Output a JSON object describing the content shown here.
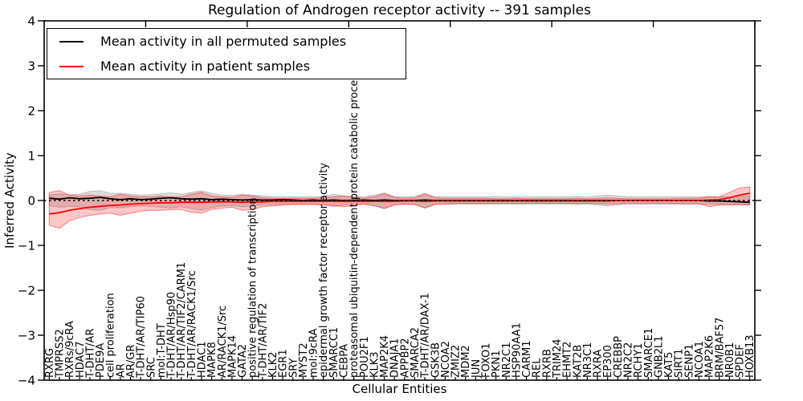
{
  "chart_data": {
    "type": "line",
    "title": "Regulation of Androgen receptor activity -- 391 samples",
    "xlabel": "Cellular Entities",
    "ylabel": "Inferred Activity",
    "ylim": [
      -4,
      4
    ],
    "ytick_values": [
      4,
      3,
      2,
      1,
      0,
      -1,
      -2,
      -3,
      -4
    ],
    "ytick_labels": [
      "4",
      "3",
      "2",
      "1",
      "0",
      "−1",
      "−2",
      "−3",
      "−4"
    ],
    "x_major_tick_interval": 10,
    "grid": false,
    "legend_position": "upper-left-inside",
    "legend": [
      {
        "label": "Mean activity in all permuted samples",
        "color": "#000000"
      },
      {
        "label": "Mean activity in patient samples",
        "color": "#ff0000"
      }
    ],
    "colors": {
      "permuted_line": "#000000",
      "patient_line": "#ff0000",
      "zero_line": "#000000",
      "permuted_band_fill": "rgba(128,128,128,0.28)",
      "permuted_band_edge": "rgba(128,128,128,0.45)",
      "patient_band_fill": "rgba(255,0,0,0.22)",
      "patient_band_edge": "rgba(255,0,0,0.45)"
    },
    "categories": [
      "RXRG",
      "TMPRSS2",
      "RXRs/9cRA",
      "HDAC7",
      "T-DHT/AR",
      "PDE9A",
      "cell proliferation",
      "AR",
      "AR/GR",
      "T-DHT/AR/TIP60",
      "SRC",
      "mol:T-DHT",
      "T-DHT/AR/Hsp90",
      "T-DHT/AR/TIF2/CARM1",
      "T-DHT/AR/RACK1/Src",
      "HDAC1",
      "MAPK8",
      "AR/RACK1/Src",
      "MAPK14",
      "GATA2",
      "positive regulation of transcription",
      "T-DHT/AR/TIF2",
      "KLK2",
      "EGR1",
      "SRY",
      "MYST2",
      "mol:9cRA",
      "epidermal growth factor receptor activity",
      "SMARCC1",
      "CEBPA",
      "proteasomal ubiquitin-dependent protein catabolic process",
      "POU2F1",
      "KLK3",
      "MAP2K4",
      "DNAJA1",
      "APPBP2",
      "SMARCA2",
      "T-DHT/AR/DAX-1",
      "GSK3B",
      "NCOA2",
      "ZMIZ2",
      "MDM2",
      "JUN",
      "FOXO1",
      "PKN1",
      "NR2C1",
      "HSP90AA1",
      "CARM1",
      "REL",
      "RXRB",
      "TRIM24",
      "EHMT2",
      "KAT2B",
      "NR3C1",
      "RXRA",
      "EP300",
      "CREBBP",
      "NR2C2",
      "RCHY1",
      "SMARCE1",
      "GNB2L1",
      "KAT5",
      "SIRT1",
      "SENP1",
      "NCOA1",
      "MAP2K6",
      "BRM/BAF57",
      "NR0B1",
      "SPDEF",
      "HOXB13"
    ],
    "series": [
      {
        "name": "Mean activity in all permuted samples",
        "values": [
          0.05,
          0.03,
          0.06,
          0.04,
          0.05,
          0.07,
          0.04,
          0.02,
          0.04,
          0.02,
          0.03,
          0.05,
          0.06,
          0.04,
          0.03,
          0.04,
          0.02,
          0.03,
          0.02,
          0.01,
          0.02,
          0.01,
          0.01,
          0.02,
          0.01,
          0.0,
          0.01,
          0.0,
          0.01,
          0.0,
          0.0,
          0.01,
          0.0,
          0.01,
          0.0,
          0.0,
          0.0,
          0.01,
          0.0,
          0.0,
          0.0,
          0.0,
          0.0,
          0.0,
          0.0,
          0.0,
          0.0,
          0.0,
          0.0,
          0.0,
          0.0,
          0.0,
          0.0,
          0.0,
          0.0,
          0.0,
          0.0,
          0.0,
          0.0,
          0.0,
          0.0,
          0.0,
          0.0,
          0.0,
          0.0,
          -0.01,
          -0.01,
          -0.02,
          -0.03,
          -0.04
        ]
      },
      {
        "name": "Mean activity in patient samples",
        "values": [
          -0.3,
          -0.27,
          -0.22,
          -0.18,
          -0.15,
          -0.13,
          -0.11,
          -0.1,
          -0.08,
          -0.07,
          -0.06,
          -0.05,
          -0.05,
          -0.04,
          -0.04,
          -0.04,
          -0.03,
          -0.03,
          -0.03,
          -0.04,
          -0.03,
          -0.03,
          -0.02,
          -0.02,
          -0.02,
          -0.02,
          -0.02,
          -0.02,
          -0.02,
          -0.02,
          -0.02,
          -0.02,
          -0.02,
          -0.02,
          -0.02,
          -0.01,
          -0.01,
          -0.02,
          -0.01,
          -0.01,
          -0.01,
          -0.01,
          -0.01,
          -0.01,
          -0.01,
          -0.01,
          -0.01,
          -0.01,
          -0.01,
          -0.01,
          -0.01,
          -0.01,
          -0.01,
          -0.01,
          -0.01,
          -0.01,
          0.0,
          0.0,
          0.0,
          0.0,
          0.0,
          0.0,
          0.0,
          0.0,
          0.0,
          0.01,
          0.02,
          0.06,
          0.12,
          0.16
        ]
      }
    ],
    "bands": [
      {
        "name": "permuted-confidence-band",
        "upper": [
          0.12,
          0.15,
          0.13,
          0.14,
          0.2,
          0.22,
          0.16,
          0.16,
          0.14,
          0.12,
          0.13,
          0.15,
          0.17,
          0.14,
          0.18,
          0.22,
          0.16,
          0.12,
          0.11,
          0.14,
          0.12,
          0.1,
          0.09,
          0.09,
          0.08,
          0.08,
          0.08,
          0.09,
          0.14,
          0.1,
          0.09,
          0.08,
          0.12,
          0.17,
          0.09,
          0.08,
          0.09,
          0.16,
          0.08,
          0.08,
          0.08,
          0.08,
          0.08,
          0.08,
          0.09,
          0.08,
          0.08,
          0.08,
          0.08,
          0.08,
          0.08,
          0.08,
          0.09,
          0.08,
          0.1,
          0.12,
          0.1,
          0.08,
          0.08,
          0.08,
          0.08,
          0.08,
          0.08,
          0.08,
          0.08,
          0.09,
          0.08,
          0.08,
          0.09,
          0.1
        ],
        "lower": [
          -0.12,
          -0.15,
          -0.13,
          -0.14,
          -0.2,
          -0.22,
          -0.16,
          -0.16,
          -0.14,
          -0.12,
          -0.13,
          -0.15,
          -0.17,
          -0.14,
          -0.18,
          -0.22,
          -0.16,
          -0.12,
          -0.11,
          -0.14,
          -0.12,
          -0.1,
          -0.09,
          -0.09,
          -0.08,
          -0.08,
          -0.08,
          -0.09,
          -0.14,
          -0.1,
          -0.09,
          -0.08,
          -0.12,
          -0.17,
          -0.09,
          -0.08,
          -0.09,
          -0.16,
          -0.08,
          -0.08,
          -0.08,
          -0.08,
          -0.08,
          -0.08,
          -0.09,
          -0.08,
          -0.08,
          -0.08,
          -0.08,
          -0.08,
          -0.08,
          -0.08,
          -0.09,
          -0.08,
          -0.1,
          -0.12,
          -0.1,
          -0.08,
          -0.08,
          -0.08,
          -0.08,
          -0.08,
          -0.08,
          -0.08,
          -0.08,
          -0.09,
          -0.08,
          -0.08,
          -0.09,
          -0.1
        ]
      },
      {
        "name": "patient-confidence-band",
        "upper": [
          0.18,
          0.22,
          0.12,
          0.1,
          0.12,
          0.1,
          0.08,
          0.14,
          0.1,
          0.08,
          0.08,
          0.1,
          0.08,
          0.08,
          0.14,
          0.18,
          0.1,
          0.08,
          0.07,
          0.12,
          0.1,
          0.06,
          0.05,
          0.05,
          0.05,
          0.05,
          0.05,
          0.06,
          0.08,
          0.1,
          0.07,
          0.05,
          0.08,
          0.15,
          0.07,
          0.05,
          0.06,
          0.14,
          0.06,
          0.05,
          0.05,
          0.05,
          0.05,
          0.05,
          0.04,
          0.04,
          0.05,
          0.04,
          0.04,
          0.04,
          0.04,
          0.04,
          0.05,
          0.04,
          0.05,
          0.06,
          0.05,
          0.04,
          0.04,
          0.04,
          0.04,
          0.04,
          0.05,
          0.05,
          0.05,
          0.08,
          0.08,
          0.18,
          0.28,
          0.3
        ],
        "lower": [
          -0.55,
          -0.62,
          -0.45,
          -0.38,
          -0.33,
          -0.3,
          -0.28,
          -0.33,
          -0.28,
          -0.24,
          -0.22,
          -0.22,
          -0.2,
          -0.2,
          -0.26,
          -0.28,
          -0.2,
          -0.17,
          -0.15,
          -0.22,
          -0.2,
          -0.14,
          -0.12,
          -0.1,
          -0.09,
          -0.09,
          -0.09,
          -0.1,
          -0.11,
          -0.14,
          -0.11,
          -0.08,
          -0.11,
          -0.18,
          -0.1,
          -0.08,
          -0.09,
          -0.17,
          -0.09,
          -0.08,
          -0.07,
          -0.07,
          -0.07,
          -0.07,
          -0.06,
          -0.06,
          -0.07,
          -0.06,
          -0.06,
          -0.06,
          -0.06,
          -0.06,
          -0.07,
          -0.06,
          -0.07,
          -0.08,
          -0.07,
          -0.06,
          -0.06,
          -0.06,
          -0.06,
          -0.06,
          -0.07,
          -0.07,
          -0.07,
          -0.14,
          -0.1,
          -0.1,
          -0.1,
          -0.1
        ]
      }
    ]
  }
}
